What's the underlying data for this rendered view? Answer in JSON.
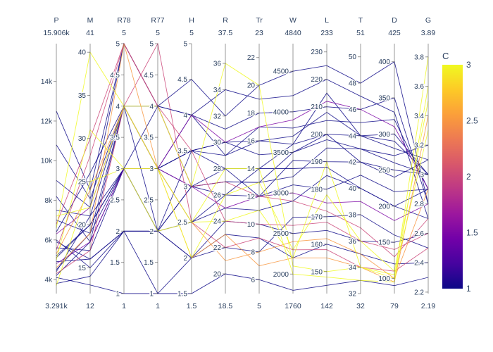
{
  "chart_data": {
    "type": "parallel_coordinates",
    "color_var": "C",
    "colorbar": {
      "title": "C",
      "ticks": [
        "1",
        "1.5",
        "2",
        "2.5",
        "3"
      ],
      "min": 1,
      "max": 3,
      "colorscale": [
        "#0d0887",
        "#46039f",
        "#7201a8",
        "#9c179e",
        "#bd3786",
        "#d8576b",
        "#ed7953",
        "#fb9f3a",
        "#fdca26",
        "#f0f921"
      ]
    },
    "dimensions": [
      {
        "label": "P",
        "range_top": "15.906k",
        "range_bottom": "3.291k",
        "min": 3291,
        "max": 15906,
        "ticks": [
          {
            "v": 4000,
            "t": "4k"
          },
          {
            "v": 6000,
            "t": "6k"
          },
          {
            "v": 8000,
            "t": "8k"
          },
          {
            "v": 10000,
            "t": "10k"
          },
          {
            "v": 12000,
            "t": "12k"
          },
          {
            "v": 14000,
            "t": "14k"
          }
        ]
      },
      {
        "label": "M",
        "range_top": "41",
        "range_bottom": "12",
        "min": 12,
        "max": 41,
        "ticks": [
          {
            "v": 15,
            "t": "15"
          },
          {
            "v": 20,
            "t": "20"
          },
          {
            "v": 25,
            "t": "25"
          },
          {
            "v": 30,
            "t": "30"
          },
          {
            "v": 35,
            "t": "35"
          },
          {
            "v": 40,
            "t": "40"
          }
        ]
      },
      {
        "label": "R78",
        "range_top": "5",
        "range_bottom": "1",
        "min": 1,
        "max": 5,
        "ticks": [
          {
            "v": 1,
            "t": "1"
          },
          {
            "v": 1.5,
            "t": "1.5"
          },
          {
            "v": 2,
            "t": "2"
          },
          {
            "v": 2.5,
            "t": "2.5"
          },
          {
            "v": 3,
            "t": "3"
          },
          {
            "v": 3.5,
            "t": "3.5"
          },
          {
            "v": 4,
            "t": "4"
          },
          {
            "v": 4.5,
            "t": "4.5"
          },
          {
            "v": 5,
            "t": "5"
          }
        ]
      },
      {
        "label": "R77",
        "range_top": "5",
        "range_bottom": "1",
        "min": 1,
        "max": 5,
        "ticks": [
          {
            "v": 1,
            "t": "1"
          },
          {
            "v": 1.5,
            "t": "1.5"
          },
          {
            "v": 2,
            "t": "2"
          },
          {
            "v": 2.5,
            "t": "2.5"
          },
          {
            "v": 3,
            "t": "3"
          },
          {
            "v": 3.5,
            "t": "3.5"
          },
          {
            "v": 4,
            "t": "4"
          },
          {
            "v": 4.5,
            "t": "4.5"
          },
          {
            "v": 5,
            "t": "5"
          }
        ]
      },
      {
        "label": "H",
        "range_top": "5",
        "range_bottom": "1.5",
        "min": 1.5,
        "max": 5,
        "ticks": [
          {
            "v": 1.5,
            "t": "1.5"
          },
          {
            "v": 2,
            "t": "2"
          },
          {
            "v": 2.5,
            "t": "2.5"
          },
          {
            "v": 3,
            "t": "3"
          },
          {
            "v": 3.5,
            "t": "3.5"
          },
          {
            "v": 4,
            "t": "4"
          },
          {
            "v": 4.5,
            "t": "4.5"
          },
          {
            "v": 5,
            "t": "5"
          }
        ]
      },
      {
        "label": "R",
        "range_top": "37.5",
        "range_bottom": "18.5",
        "min": 18.5,
        "max": 37.5,
        "ticks": [
          {
            "v": 20,
            "t": "20"
          },
          {
            "v": 22,
            "t": "22"
          },
          {
            "v": 24,
            "t": "24"
          },
          {
            "v": 26,
            "t": "26"
          },
          {
            "v": 28,
            "t": "28"
          },
          {
            "v": 30,
            "t": "30"
          },
          {
            "v": 32,
            "t": "32"
          },
          {
            "v": 34,
            "t": "34"
          },
          {
            "v": 36,
            "t": "36"
          }
        ]
      },
      {
        "label": "Tr",
        "range_top": "23",
        "range_bottom": "5",
        "min": 5,
        "max": 23,
        "ticks": [
          {
            "v": 6,
            "t": "6"
          },
          {
            "v": 8,
            "t": "8"
          },
          {
            "v": 10,
            "t": "10"
          },
          {
            "v": 12,
            "t": "12"
          },
          {
            "v": 14,
            "t": "14"
          },
          {
            "v": 16,
            "t": "16"
          },
          {
            "v": 18,
            "t": "18"
          },
          {
            "v": 20,
            "t": "20"
          },
          {
            "v": 22,
            "t": "22"
          }
        ]
      },
      {
        "label": "W",
        "range_top": "4840",
        "range_bottom": "1760",
        "min": 1760,
        "max": 4840,
        "ticks": [
          {
            "v": 2000,
            "t": "2000"
          },
          {
            "v": 2500,
            "t": "2500"
          },
          {
            "v": 3000,
            "t": "3000"
          },
          {
            "v": 3500,
            "t": "3500"
          },
          {
            "v": 4000,
            "t": "4000"
          },
          {
            "v": 4500,
            "t": "4500"
          }
        ]
      },
      {
        "label": "L",
        "range_top": "233",
        "range_bottom": "142",
        "min": 142,
        "max": 233,
        "ticks": [
          {
            "v": 150,
            "t": "150"
          },
          {
            "v": 160,
            "t": "160"
          },
          {
            "v": 170,
            "t": "170"
          },
          {
            "v": 180,
            "t": "180"
          },
          {
            "v": 190,
            "t": "190"
          },
          {
            "v": 200,
            "t": "200"
          },
          {
            "v": 210,
            "t": "210"
          },
          {
            "v": 220,
            "t": "220"
          },
          {
            "v": 230,
            "t": "230"
          }
        ]
      },
      {
        "label": "T",
        "range_top": "51",
        "range_bottom": "32",
        "min": 32,
        "max": 51,
        "ticks": [
          {
            "v": 32,
            "t": "32"
          },
          {
            "v": 34,
            "t": "34"
          },
          {
            "v": 36,
            "t": "36"
          },
          {
            "v": 38,
            "t": "38"
          },
          {
            "v": 40,
            "t": "40"
          },
          {
            "v": 42,
            "t": "42"
          },
          {
            "v": 44,
            "t": "44"
          },
          {
            "v": 46,
            "t": "46"
          },
          {
            "v": 48,
            "t": "48"
          },
          {
            "v": 50,
            "t": "50"
          }
        ]
      },
      {
        "label": "D",
        "range_top": "425",
        "range_bottom": "79",
        "min": 79,
        "max": 425,
        "ticks": [
          {
            "v": 100,
            "t": "100"
          },
          {
            "v": 150,
            "t": "150"
          },
          {
            "v": 200,
            "t": "200"
          },
          {
            "v": 250,
            "t": "250"
          },
          {
            "v": 300,
            "t": "300"
          },
          {
            "v": 350,
            "t": "350"
          },
          {
            "v": 400,
            "t": "400"
          }
        ]
      },
      {
        "label": "G",
        "range_top": "3.89",
        "range_bottom": "2.19",
        "min": 2.19,
        "max": 3.89,
        "ticks": [
          {
            "v": 2.2,
            "t": "2.2"
          },
          {
            "v": 2.4,
            "t": "2.4"
          },
          {
            "v": 2.6,
            "t": "2.6"
          },
          {
            "v": 2.8,
            "t": "2.8"
          },
          {
            "v": 3,
            "t": "3"
          },
          {
            "v": 3.2,
            "t": "3.2"
          },
          {
            "v": 3.4,
            "t": "3.4"
          },
          {
            "v": 3.6,
            "t": "3.6"
          },
          {
            "v": 3.8,
            "t": "3.8"
          }
        ]
      }
    ],
    "records": [
      {
        "c": 1,
        "v": [
          4200,
          18,
          4,
          3,
          3.5,
          30,
          16,
          3600,
          200,
          44,
          300,
          3.0
        ]
      },
      {
        "c": 1,
        "v": [
          5200,
          20,
          3,
          2,
          3,
          26,
          12,
          3400,
          190,
          42,
          250,
          3.0
        ]
      },
      {
        "c": 1,
        "v": [
          9000,
          22,
          5,
          4,
          4,
          31,
          18,
          4000,
          210,
          46,
          350,
          2.8
        ]
      },
      {
        "c": 1,
        "v": [
          6000,
          15,
          2,
          2,
          2,
          24,
          10,
          2500,
          165,
          36,
          150,
          2.6
        ]
      },
      {
        "c": 1,
        "v": [
          4500,
          19,
          3,
          3,
          3.5,
          28,
          14,
          3600,
          215,
          44,
          280,
          3.1
        ]
      },
      {
        "c": 1,
        "v": [
          7500,
          21,
          4,
          3,
          4,
          29,
          17,
          3800,
          205,
          45,
          320,
          2.9
        ]
      },
      {
        "c": 1,
        "v": [
          3800,
          14,
          2,
          2,
          2.5,
          25,
          11,
          2900,
          185,
          40,
          200,
          2.7
        ]
      },
      {
        "c": 1,
        "v": [
          5600,
          17,
          3,
          4,
          3,
          27,
          13,
          3200,
          195,
          43,
          260,
          3.0
        ]
      },
      {
        "c": 1,
        "v": [
          12500,
          24,
          5,
          4,
          4.5,
          32,
          20,
          4500,
          225,
          48,
          400,
          2.8
        ]
      },
      {
        "c": 1,
        "v": [
          4900,
          16,
          2,
          1,
          2,
          23,
          9,
          2200,
          160,
          35,
          120,
          2.4
        ]
      },
      {
        "c": 1,
        "v": [
          6400,
          26,
          4,
          3,
          3.5,
          30,
          15,
          3500,
          200,
          42,
          240,
          3.1
        ]
      },
      {
        "c": 1,
        "v": [
          8200,
          18,
          3,
          2,
          3,
          28,
          12,
          3100,
          180,
          41,
          220,
          2.9
        ]
      },
      {
        "c": 1,
        "v": [
          4100,
          13,
          1,
          1,
          1.5,
          20,
          6,
          1800,
          145,
          33,
          90,
          2.3
        ]
      },
      {
        "c": 1,
        "v": [
          10800,
          23,
          4,
          4,
          4,
          34,
          19,
          4200,
          220,
          47,
          330,
          2.7
        ]
      },
      {
        "c": 1,
        "v": [
          5100,
          20,
          3,
          3,
          2.5,
          26,
          14,
          3300,
          188,
          40,
          200,
          2.9
        ]
      },
      {
        "c": 1,
        "v": [
          7000,
          19,
          4,
          2,
          3.5,
          29,
          16,
          3700,
          208,
          44,
          290,
          3.0
        ]
      },
      {
        "c": 1,
        "v": [
          4400,
          21,
          3,
          3,
          3,
          27,
          13,
          3500,
          198,
          43,
          270,
          3.2
        ]
      },
      {
        "c": 1,
        "v": [
          5900,
          16,
          2,
          2,
          2,
          22,
          8,
          2700,
          170,
          38,
          160,
          2.5
        ]
      },
      {
        "c": 1.5,
        "v": [
          4800,
          18,
          3,
          3,
          3,
          25,
          12,
          3000,
          175,
          39,
          180,
          2.8
        ]
      },
      {
        "c": 1.5,
        "v": [
          6300,
          22,
          4,
          3,
          4,
          30,
          17,
          3900,
          212,
          46,
          310,
          2.9
        ]
      },
      {
        "c": 2,
        "v": [
          5500,
          28,
          5,
          4,
          3.5,
          24,
          10,
          2600,
          168,
          36,
          140,
          2.6
        ]
      },
      {
        "c": 2,
        "v": [
          4300,
          17,
          4,
          5,
          2.5,
          22,
          9,
          2300,
          158,
          34,
          110,
          2.5
        ]
      },
      {
        "c": 2,
        "v": [
          6800,
          30,
          5,
          4,
          3,
          27,
          12,
          2900,
          172,
          37,
          130,
          2.7
        ]
      },
      {
        "c": 2.5,
        "v": [
          5300,
          24,
          4,
          3,
          2.5,
          21,
          8,
          2400,
          162,
          35,
          100,
          2.9
        ]
      },
      {
        "c": 2.5,
        "v": [
          4600,
          19,
          5,
          3,
          2,
          23,
          7,
          2200,
          155,
          34,
          95,
          3.4
        ]
      },
      {
        "c": 3,
        "v": [
          6600,
          40,
          4,
          4,
          3,
          36,
          20,
          2100,
          150,
          34,
          100,
          3.8
        ]
      },
      {
        "c": 3,
        "v": [
          5000,
          31,
          3,
          3,
          2.5,
          28,
          14,
          2000,
          148,
          33,
          95,
          3.6
        ]
      },
      {
        "c": 3,
        "v": [
          7200,
          22,
          4,
          3,
          2,
          26,
          13,
          2300,
          178,
          36,
          110,
          3.5
        ]
      },
      {
        "c": 3,
        "v": [
          3700,
          25,
          3,
          2,
          2.5,
          24,
          11,
          2200,
          190,
          34,
          105,
          3.3
        ]
      }
    ]
  }
}
